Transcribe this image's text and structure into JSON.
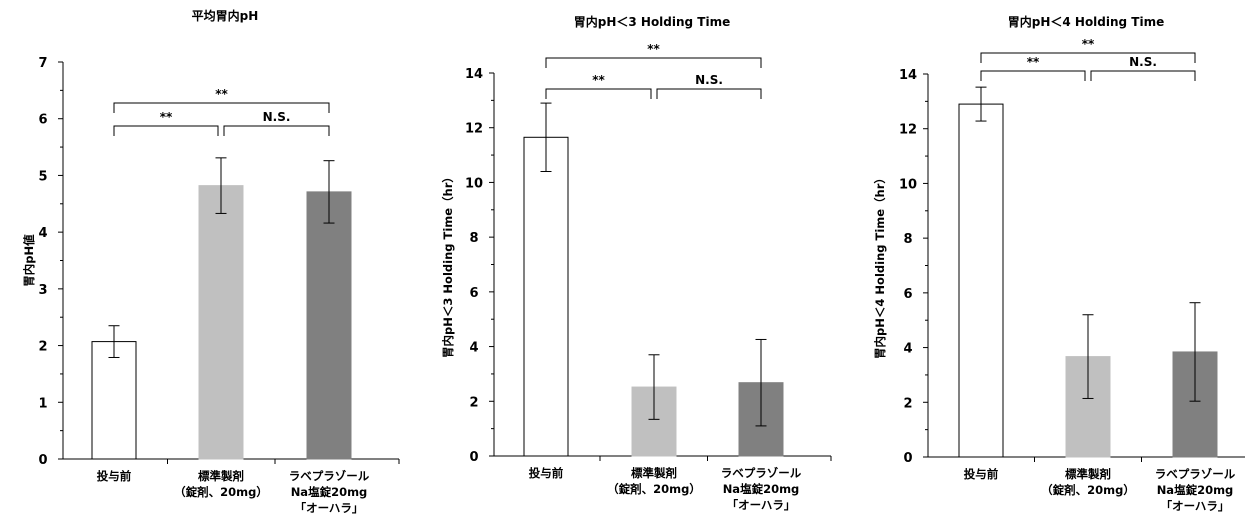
{
  "chart_data": [
    {
      "type": "bar",
      "title": "平均胃内pH",
      "ylabel": "胃内pH値",
      "xlabel": "",
      "ylim": [
        0,
        7
      ],
      "yticks": [
        0,
        1,
        2,
        3,
        4,
        5,
        6,
        7
      ],
      "categories": [
        [
          "投与前"
        ],
        [
          "標準製剤",
          "（錠剤、20mg）"
        ],
        [
          "ラベプラゾール",
          "Na塩錠20mg",
          "「オーハラ」"
        ]
      ],
      "values": [
        2.07,
        4.82,
        4.71
      ],
      "errors": [
        0.28,
        0.49,
        0.55
      ],
      "bar_colors": [
        "#ffffff",
        "#c0c0c0",
        "#808080"
      ],
      "grid": false,
      "significance": [
        {
          "from": 0,
          "to": 1,
          "label": "**",
          "level": 1
        },
        {
          "from": 1,
          "to": 2,
          "label": "N.S.",
          "level": 1
        },
        {
          "from": 0,
          "to": 2,
          "label": "**",
          "level": 2
        }
      ]
    },
    {
      "type": "bar",
      "title": "胃内pH＜3 Holding Time",
      "ylabel": "胃内pH＜3 Holding Time（hr）",
      "xlabel": "",
      "ylim": [
        0,
        14
      ],
      "yticks": [
        0,
        2,
        4,
        6,
        8,
        10,
        12,
        14
      ],
      "categories": [
        [
          "投与前"
        ],
        [
          "標準製剤",
          "（錠剤、20mg）"
        ],
        [
          "ラベプラゾール",
          "Na塩錠20mg",
          "「オーハラ」"
        ]
      ],
      "values": [
        11.65,
        2.52,
        2.68
      ],
      "errors": [
        1.25,
        1.18,
        1.58
      ],
      "bar_colors": [
        "#ffffff",
        "#c0c0c0",
        "#808080"
      ],
      "grid": false,
      "significance": [
        {
          "from": 0,
          "to": 1,
          "label": "**",
          "level": 1
        },
        {
          "from": 1,
          "to": 2,
          "label": "N.S.",
          "level": 1
        },
        {
          "from": 0,
          "to": 2,
          "label": "**",
          "level": 2
        }
      ]
    },
    {
      "type": "bar",
      "title": "胃内pH＜4 Holding Time",
      "ylabel": "胃内pH＜4 Holding Time（hr）",
      "xlabel": "",
      "ylim": [
        0,
        14
      ],
      "yticks": [
        0,
        2,
        4,
        6,
        8,
        10,
        12,
        14
      ],
      "categories": [
        [
          "投与前"
        ],
        [
          "標準製剤",
          "（錠剤、20mg）"
        ],
        [
          "ラベプラゾール",
          "Na塩錠20mg",
          "「オーハラ」"
        ]
      ],
      "values": [
        12.9,
        3.67,
        3.84
      ],
      "errors": [
        0.62,
        1.53,
        1.8
      ],
      "bar_colors": [
        "#ffffff",
        "#c0c0c0",
        "#808080"
      ],
      "grid": false,
      "significance": [
        {
          "from": 0,
          "to": 1,
          "label": "**",
          "level": 1
        },
        {
          "from": 1,
          "to": 2,
          "label": "N.S.",
          "level": 1
        },
        {
          "from": 0,
          "to": 2,
          "label": "**",
          "level": 2
        }
      ]
    }
  ]
}
